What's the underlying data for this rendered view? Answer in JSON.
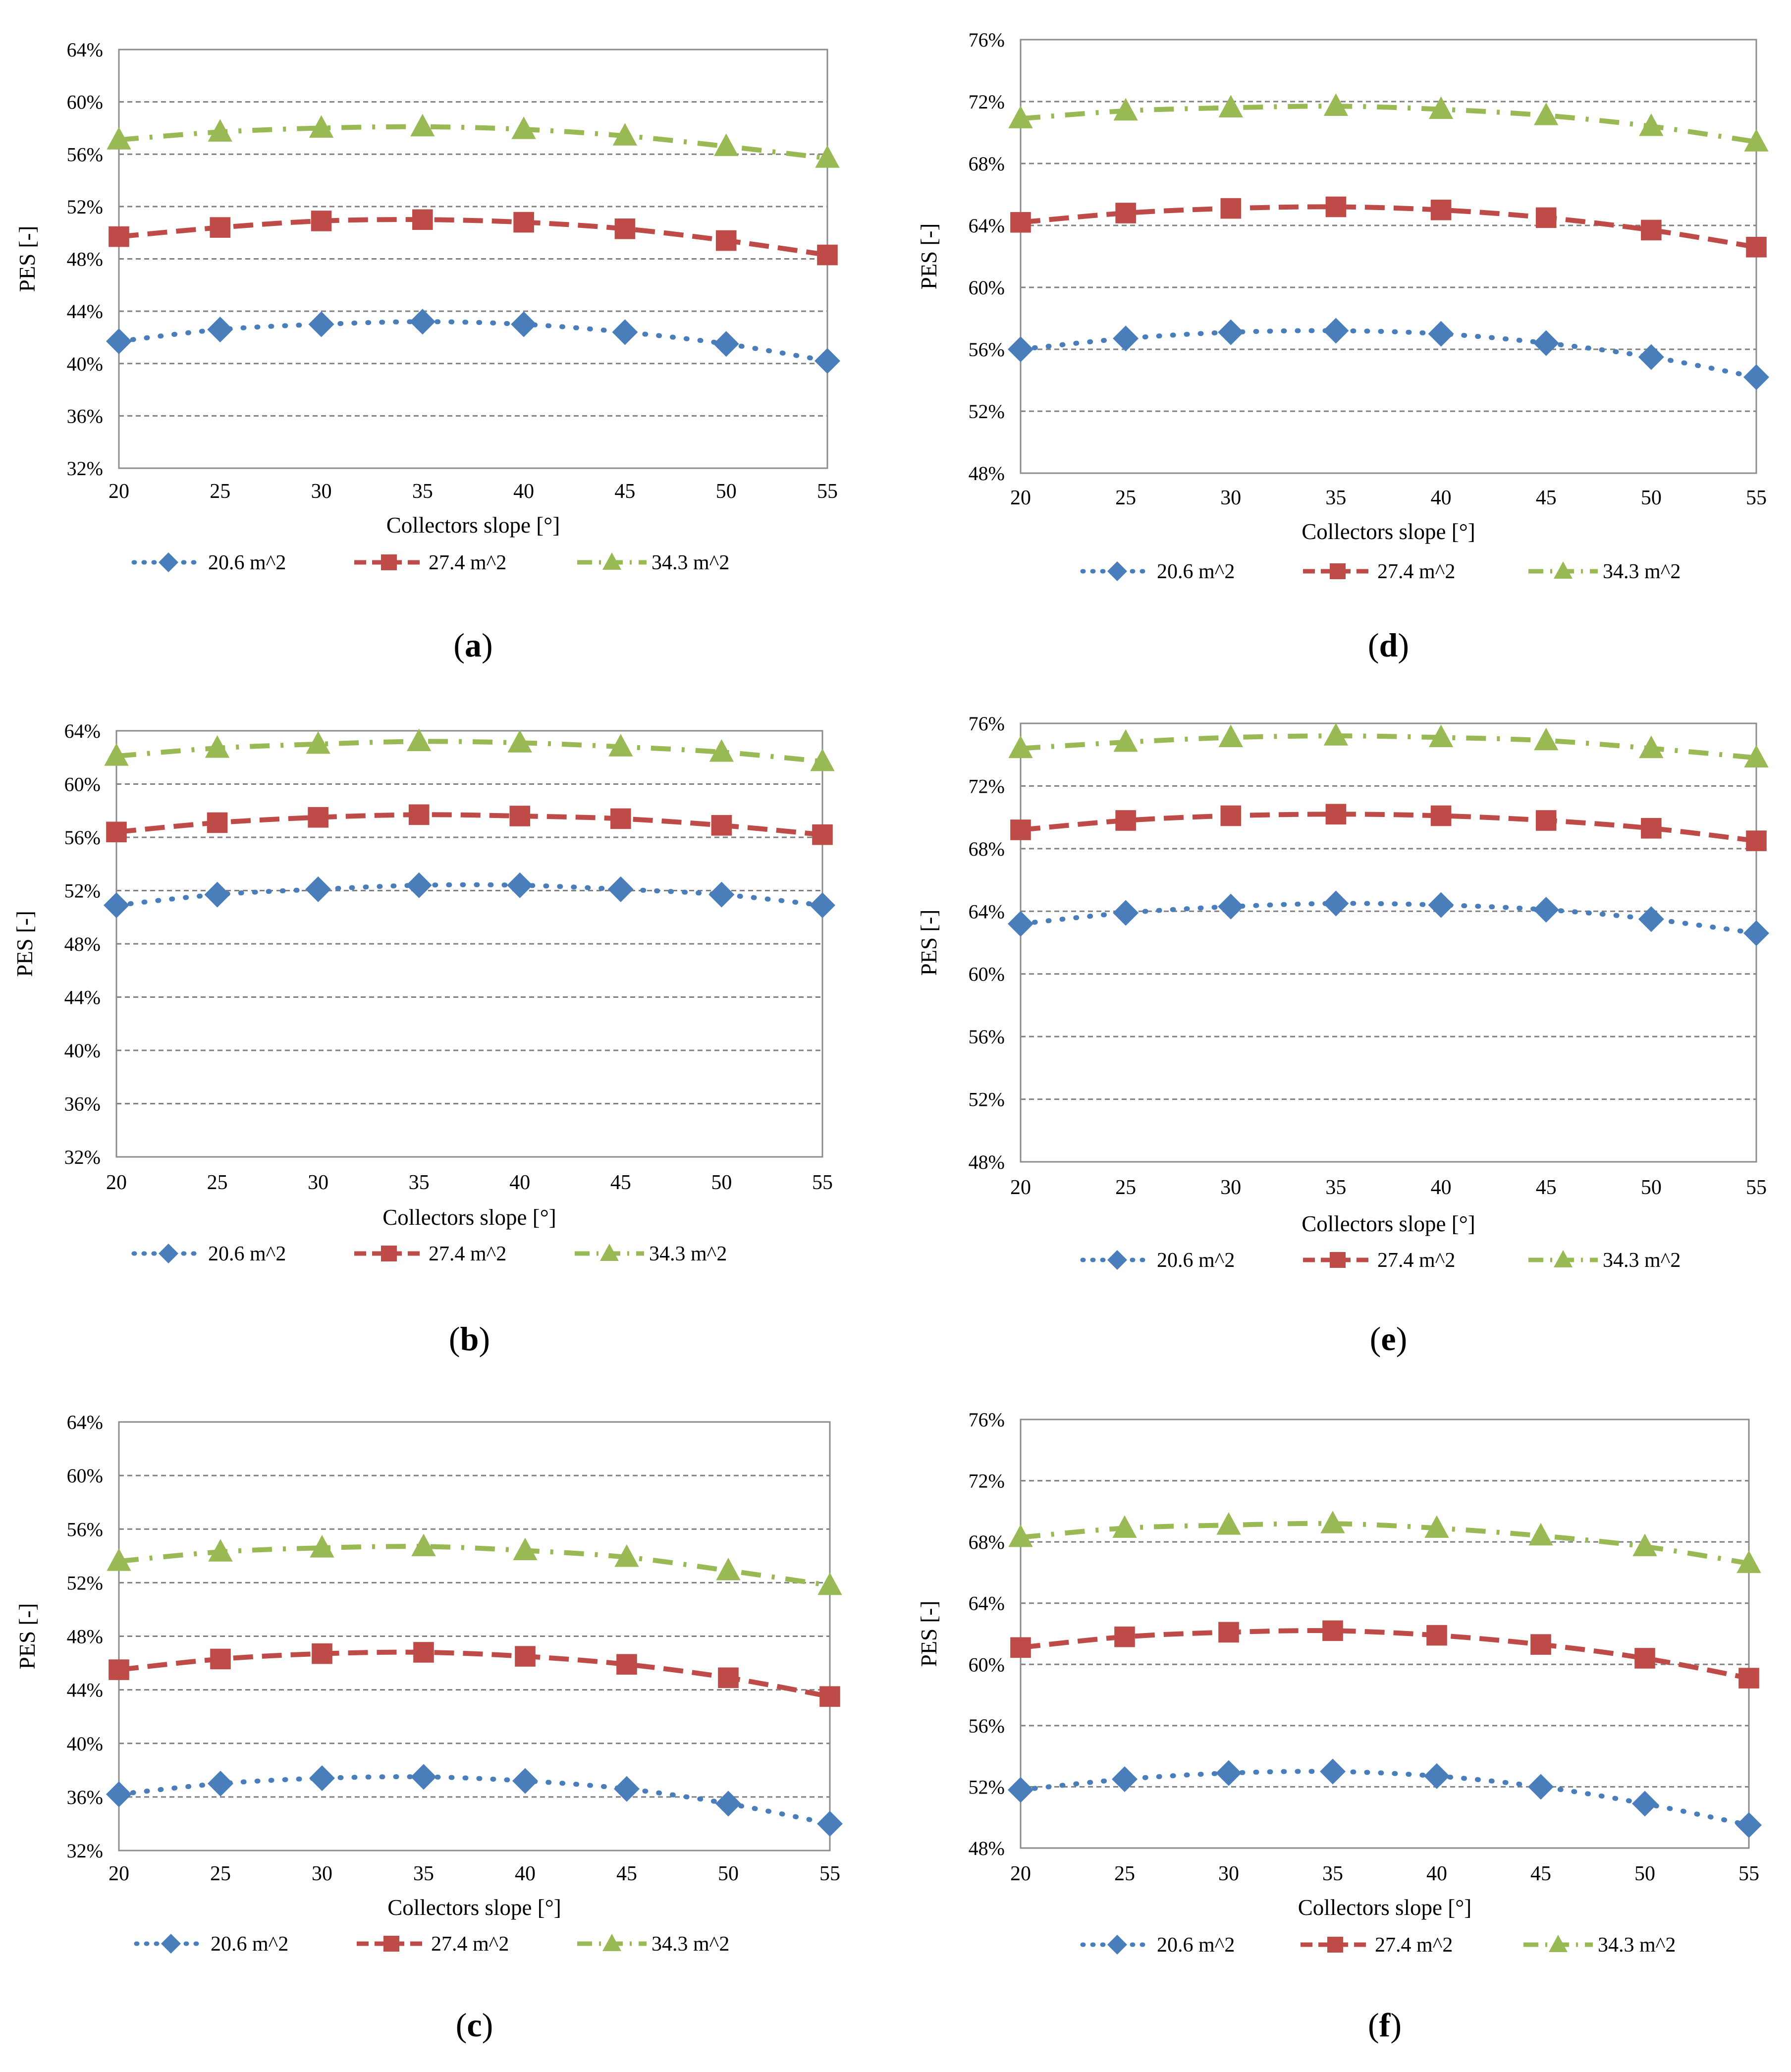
{
  "figure": {
    "series_colors": {
      "20.6 m^2": "#4a7ebb",
      "27.4 m^2": "#be4b48",
      "34.3 m^2": "#98b954"
    },
    "grid_color": "#808080"
  },
  "chart_data": [
    {
      "panel": "(a)",
      "panel_letter": "a",
      "type": "line",
      "xlabel": "Collectors slope [°]",
      "ylabel": "PES [-]",
      "x": [
        20,
        25,
        30,
        35,
        40,
        45,
        50,
        55
      ],
      "x_ticks": [
        "20",
        "25",
        "30",
        "35",
        "40",
        "45",
        "50",
        "55"
      ],
      "y_ticks": [
        "32%",
        "36%",
        "40%",
        "44%",
        "48%",
        "52%",
        "56%",
        "60%",
        "64%"
      ],
      "ylim": [
        32,
        64
      ],
      "grid": "horizontal dashed",
      "legend": "bottom",
      "series": [
        {
          "name": "20.6 m^2",
          "marker": "diamond",
          "line": "dotted",
          "values": [
            41.7,
            42.6,
            43.0,
            43.2,
            43.0,
            42.4,
            41.5,
            40.2
          ]
        },
        {
          "name": "27.4 m^2",
          "marker": "square",
          "line": "dashed",
          "values": [
            49.7,
            50.4,
            50.9,
            51.0,
            50.8,
            50.3,
            49.4,
            48.3
          ]
        },
        {
          "name": "34.3 m^2",
          "marker": "triangle",
          "line": "dash-dot",
          "values": [
            57.1,
            57.7,
            58.0,
            58.1,
            57.9,
            57.4,
            56.6,
            55.7
          ]
        }
      ]
    },
    {
      "panel": "(b)",
      "panel_letter": "b",
      "type": "line",
      "xlabel": "Collectors slope [°]",
      "ylabel": "PES [-]",
      "x": [
        20,
        25,
        30,
        35,
        40,
        45,
        50,
        55
      ],
      "x_ticks": [
        "20",
        "25",
        "30",
        "35",
        "40",
        "45",
        "50",
        "55"
      ],
      "y_ticks": [
        "32%",
        "36%",
        "40%",
        "44%",
        "48%",
        "52%",
        "56%",
        "60%",
        "64%"
      ],
      "ylim": [
        32,
        64
      ],
      "grid": "horizontal dashed",
      "legend": "bottom",
      "series": [
        {
          "name": "20.6 m^2",
          "marker": "diamond",
          "line": "dotted",
          "values": [
            50.9,
            51.7,
            52.1,
            52.4,
            52.4,
            52.1,
            51.7,
            50.9
          ]
        },
        {
          "name": "27.4 m^2",
          "marker": "square",
          "line": "dashed",
          "values": [
            56.4,
            57.1,
            57.5,
            57.7,
            57.6,
            57.4,
            56.9,
            56.2
          ]
        },
        {
          "name": "34.3 m^2",
          "marker": "triangle",
          "line": "dash-dot",
          "values": [
            62.1,
            62.7,
            63.0,
            63.2,
            63.1,
            62.8,
            62.4,
            61.7
          ]
        }
      ]
    },
    {
      "panel": "(c)",
      "panel_letter": "c",
      "type": "line",
      "xlabel": "Collectors slope [°]",
      "ylabel": "PES [-]",
      "x": [
        20,
        25,
        30,
        35,
        40,
        45,
        50,
        55
      ],
      "x_ticks": [
        "20",
        "25",
        "30",
        "35",
        "40",
        "45",
        "50",
        "55"
      ],
      "y_ticks": [
        "32%",
        "36%",
        "40%",
        "44%",
        "48%",
        "52%",
        "56%",
        "60%",
        "64%"
      ],
      "ylim": [
        32,
        64
      ],
      "grid": "horizontal dashed",
      "legend": "bottom",
      "series": [
        {
          "name": "20.6 m^2",
          "marker": "diamond",
          "line": "dotted",
          "values": [
            36.2,
            37.0,
            37.4,
            37.5,
            37.2,
            36.6,
            35.5,
            34.0
          ]
        },
        {
          "name": "27.4 m^2",
          "marker": "square",
          "line": "dashed",
          "values": [
            45.5,
            46.3,
            46.7,
            46.8,
            46.5,
            45.9,
            44.9,
            43.5
          ]
        },
        {
          "name": "34.3 m^2",
          "marker": "triangle",
          "line": "dash-dot",
          "values": [
            53.6,
            54.3,
            54.6,
            54.7,
            54.4,
            53.9,
            52.9,
            51.8
          ]
        }
      ]
    },
    {
      "panel": "(d)",
      "panel_letter": "d",
      "type": "line",
      "xlabel": "Collectors slope [°]",
      "ylabel": "PES [-]",
      "x": [
        20,
        25,
        30,
        35,
        40,
        45,
        50,
        55
      ],
      "x_ticks": [
        "20",
        "25",
        "30",
        "35",
        "40",
        "45",
        "50",
        "55"
      ],
      "y_ticks": [
        "48%",
        "52%",
        "56%",
        "60%",
        "64%",
        "68%",
        "72%",
        "76%"
      ],
      "ylim": [
        48,
        76
      ],
      "grid": "horizontal dashed",
      "legend": "bottom",
      "series": [
        {
          "name": "20.6 m^2",
          "marker": "diamond",
          "line": "dotted",
          "values": [
            56.0,
            56.7,
            57.1,
            57.2,
            57.0,
            56.4,
            55.5,
            54.2
          ]
        },
        {
          "name": "27.4 m^2",
          "marker": "square",
          "line": "dashed",
          "values": [
            64.2,
            64.8,
            65.1,
            65.2,
            65.0,
            64.5,
            63.7,
            62.6
          ]
        },
        {
          "name": "34.3 m^2",
          "marker": "triangle",
          "line": "dash-dot",
          "values": [
            70.9,
            71.4,
            71.6,
            71.7,
            71.5,
            71.1,
            70.4,
            69.4
          ]
        }
      ]
    },
    {
      "panel": "(e)",
      "panel_letter": "e",
      "type": "line",
      "xlabel": "Collectors slope [°]",
      "ylabel": "PES [-]",
      "x": [
        20,
        25,
        30,
        35,
        40,
        45,
        50,
        55
      ],
      "x_ticks": [
        "20",
        "25",
        "30",
        "35",
        "40",
        "45",
        "50",
        "55"
      ],
      "y_ticks": [
        "48%",
        "52%",
        "56%",
        "60%",
        "64%",
        "68%",
        "72%",
        "76%"
      ],
      "ylim": [
        48,
        76
      ],
      "grid": "horizontal dashed",
      "legend": "bottom",
      "series": [
        {
          "name": "20.6 m^2",
          "marker": "diamond",
          "line": "dotted",
          "values": [
            63.2,
            63.9,
            64.3,
            64.5,
            64.4,
            64.1,
            63.5,
            62.6
          ]
        },
        {
          "name": "27.4 m^2",
          "marker": "square",
          "line": "dashed",
          "values": [
            69.2,
            69.8,
            70.1,
            70.2,
            70.1,
            69.8,
            69.3,
            68.5
          ]
        },
        {
          "name": "34.3 m^2",
          "marker": "triangle",
          "line": "dash-dot",
          "values": [
            74.4,
            74.8,
            75.1,
            75.2,
            75.1,
            74.9,
            74.4,
            73.8
          ]
        }
      ]
    },
    {
      "panel": "(f)",
      "panel_letter": "f",
      "type": "line",
      "xlabel": "Collectors slope [°]",
      "ylabel": "PES [-]",
      "x": [
        20,
        25,
        30,
        35,
        40,
        45,
        50,
        55
      ],
      "x_ticks": [
        "20",
        "25",
        "30",
        "35",
        "40",
        "45",
        "50",
        "55"
      ],
      "y_ticks": [
        "48%",
        "52%",
        "56%",
        "60%",
        "64%",
        "68%",
        "72%",
        "76%"
      ],
      "ylim": [
        48,
        76
      ],
      "grid": "horizontal dashed",
      "legend": "bottom",
      "series": [
        {
          "name": "20.6 m^2",
          "marker": "diamond",
          "line": "dotted",
          "values": [
            51.8,
            52.5,
            52.9,
            53.0,
            52.7,
            52.0,
            50.9,
            49.5
          ]
        },
        {
          "name": "27.4 m^2",
          "marker": "square",
          "line": "dashed",
          "values": [
            61.1,
            61.8,
            62.1,
            62.2,
            61.9,
            61.3,
            60.4,
            59.1
          ]
        },
        {
          "name": "34.3 m^2",
          "marker": "triangle",
          "line": "dash-dot",
          "values": [
            68.3,
            68.9,
            69.1,
            69.2,
            68.9,
            68.4,
            67.7,
            66.6
          ]
        }
      ]
    }
  ]
}
